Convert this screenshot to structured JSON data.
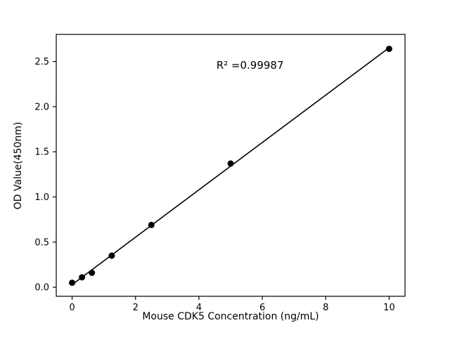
{
  "chart_data": {
    "type": "scatter",
    "title": "",
    "xlabel": "Mouse CDK5 Concentration (ng/mL)",
    "ylabel": "OD Value(450nm)",
    "annotation": "R² =0.99987",
    "annotation_xy": [
      4.55,
      2.42
    ],
    "x": [
      0,
      0.3125,
      0.625,
      1.25,
      2.5,
      5,
      10
    ],
    "y": [
      0.05,
      0.11,
      0.16,
      0.35,
      0.69,
      1.37,
      2.64
    ],
    "xlim": [
      -0.5,
      10.5
    ],
    "ylim": [
      -0.1,
      2.8
    ],
    "xticks": [
      0,
      2,
      4,
      6,
      8,
      10
    ],
    "xtick_labels": [
      "0",
      "2",
      "4",
      "6",
      "8",
      "10"
    ],
    "yticks": [
      0.0,
      0.5,
      1.0,
      1.5,
      2.0,
      2.5
    ],
    "ytick_labels": [
      "0.0",
      "0.5",
      "1.0",
      "1.5",
      "2.0",
      "2.5"
    ],
    "line_color": "#000000",
    "marker_color": "#000000",
    "background_color": "#ffffff",
    "grid": false,
    "legend": null,
    "fit": "linear"
  }
}
